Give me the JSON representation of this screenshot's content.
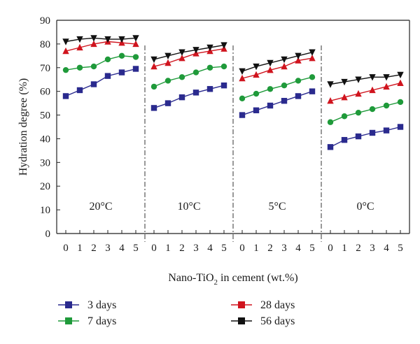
{
  "chart_data": {
    "type": "line",
    "ylabel": "Hydration degree (%)",
    "xlabel": "Nano-TiO2 in cement (wt.%)",
    "xlabel_parts": {
      "before": "Nano-TiO",
      "sub": "2",
      "after": " in cement (wt.%)"
    },
    "ylim": [
      0,
      90
    ],
    "yticks": [
      0,
      10,
      20,
      30,
      40,
      50,
      60,
      70,
      80,
      90
    ],
    "grid": false,
    "legend_position": "bottom",
    "panels": [
      {
        "label": "20°C",
        "x": [
          0,
          1,
          2,
          3,
          4,
          5
        ],
        "series": [
          {
            "name": "3 days",
            "values": [
              58.0,
              60.5,
              63.0,
              66.5,
              68.0,
              69.5
            ]
          },
          {
            "name": "7 days",
            "values": [
              69.0,
              70.0,
              70.5,
              73.5,
              75.0,
              74.5
            ]
          },
          {
            "name": "28 days",
            "values": [
              77.0,
              78.5,
              80.0,
              81.0,
              80.5,
              80.0
            ]
          },
          {
            "name": "56 days",
            "values": [
              81.0,
              82.0,
              82.5,
              82.0,
              82.0,
              82.5
            ]
          }
        ]
      },
      {
        "label": "10°C",
        "x": [
          0,
          1,
          2,
          3,
          4,
          5
        ],
        "series": [
          {
            "name": "3 days",
            "values": [
              53.0,
              55.0,
              57.5,
              59.5,
              61.0,
              62.5
            ]
          },
          {
            "name": "7 days",
            "values": [
              62.0,
              64.5,
              66.0,
              68.0,
              70.0,
              70.5
            ]
          },
          {
            "name": "28 days",
            "values": [
              70.5,
              72.0,
              74.0,
              76.0,
              77.0,
              78.0
            ]
          },
          {
            "name": "56 days",
            "values": [
              73.5,
              75.0,
              76.5,
              77.5,
              78.5,
              79.5
            ]
          }
        ]
      },
      {
        "label": "5°C",
        "x": [
          0,
          1,
          2,
          3,
          4,
          5
        ],
        "series": [
          {
            "name": "3 days",
            "values": [
              50.0,
              52.0,
              54.0,
              56.0,
              58.0,
              60.0
            ]
          },
          {
            "name": "7 days",
            "values": [
              57.0,
              59.0,
              61.0,
              62.5,
              64.5,
              66.0
            ]
          },
          {
            "name": "28 days",
            "values": [
              65.5,
              67.0,
              69.0,
              70.5,
              73.0,
              74.0
            ]
          },
          {
            "name": "56 days",
            "values": [
              68.5,
              70.5,
              72.0,
              73.5,
              75.0,
              76.5
            ]
          }
        ]
      },
      {
        "label": "0°C",
        "x": [
          0,
          1,
          2,
          3,
          4,
          5
        ],
        "series": [
          {
            "name": "3 days",
            "values": [
              36.5,
              39.5,
              41.0,
              42.5,
              43.5,
              45.0
            ]
          },
          {
            "name": "7 days",
            "values": [
              47.0,
              49.5,
              51.0,
              52.5,
              54.0,
              55.5
            ]
          },
          {
            "name": "28 days",
            "values": [
              56.0,
              57.5,
              59.0,
              60.5,
              62.0,
              63.5
            ]
          },
          {
            "name": "56 days",
            "values": [
              63.0,
              64.0,
              65.0,
              66.0,
              66.0,
              67.0
            ]
          }
        ]
      }
    ],
    "series_styles": [
      {
        "name": "3 days",
        "color": "#2a2a8e",
        "marker": "square"
      },
      {
        "name": "7 days",
        "color": "#1f9a3a",
        "marker": "circle"
      },
      {
        "name": "28 days",
        "color": "#d0141e",
        "marker": "triangle-up"
      },
      {
        "name": "56 days",
        "color": "#111111",
        "marker": "triangle-down"
      }
    ],
    "legend": [
      {
        "name": "3 days",
        "color": "#2a2a8e"
      },
      {
        "name": "7 days",
        "color": "#1f9a3a"
      },
      {
        "name": "28 days",
        "color": "#d0141e"
      },
      {
        "name": "56 days",
        "color": "#111111"
      }
    ]
  }
}
